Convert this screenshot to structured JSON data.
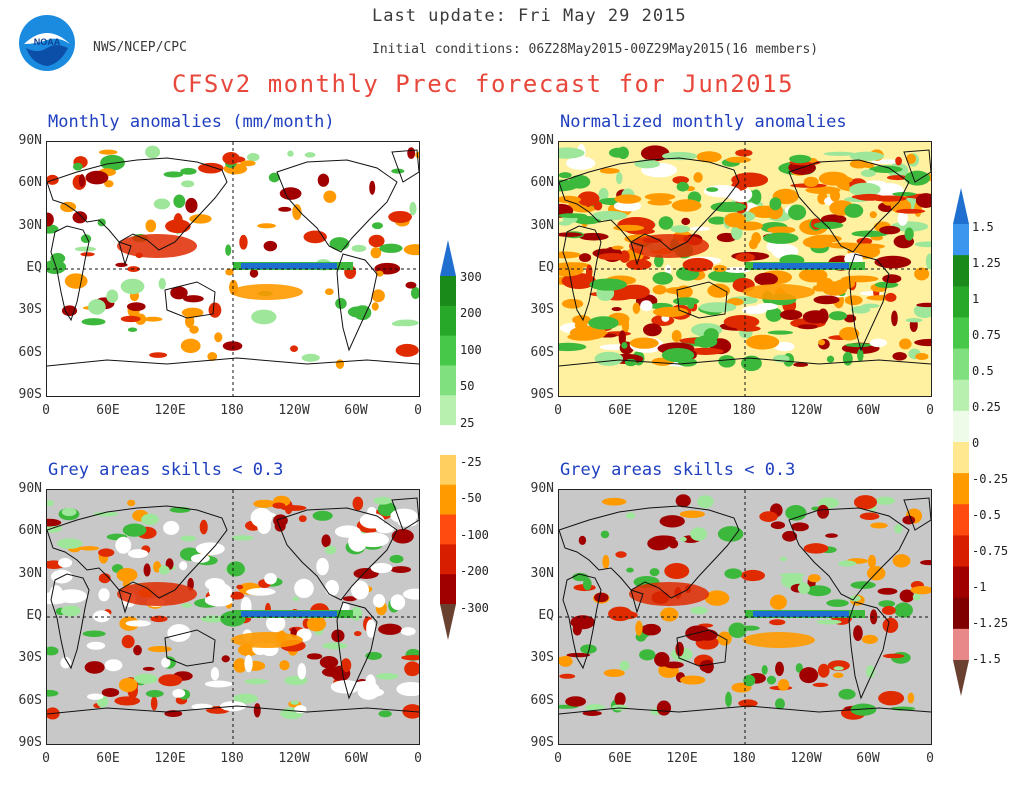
{
  "header": {
    "last_update": "Last update: Fri May 29 2015",
    "agency": "NWS/NCEP/CPC",
    "initial_conditions": "Initial conditions: 06Z28May2015-00Z29May2015(16 members)",
    "main_title": "CFSv2 monthly Prec forecast for Jun2015",
    "logo_text": "NOAA"
  },
  "panels": [
    {
      "id": "anomalies",
      "title": "Monthly anomalies (mm/month)"
    },
    {
      "id": "normalized",
      "title": "Normalized monthly anomalies"
    },
    {
      "id": "skill-anomalies",
      "title": "Grey areas skills < 0.3"
    },
    {
      "id": "skill-normalized",
      "title": "Grey areas skills < 0.3"
    }
  ],
  "axes": {
    "lat_labels": [
      "90N",
      "60N",
      "30N",
      "EQ",
      "30S",
      "60S",
      "90S"
    ],
    "lon_labels": [
      "0",
      "60E",
      "120E",
      "180",
      "120W",
      "60W",
      "0"
    ]
  },
  "colorbar_mm": {
    "labels": [
      "300",
      "200",
      "100",
      "50",
      "25",
      "-25",
      "-50",
      "-100",
      "-200",
      "-300"
    ],
    "colors": [
      "#1e6fd0",
      "#1a8a1a",
      "#28a828",
      "#48c848",
      "#80e080",
      "#b8f0b0",
      "#ffffff",
      "#ffd060",
      "#ff9a00",
      "#ff4a10",
      "#d81e00",
      "#a00000",
      "#6a4030"
    ]
  },
  "colorbar_norm": {
    "labels": [
      "1.5",
      "1.25",
      "1",
      "0.75",
      "0.5",
      "0.25",
      "0",
      "-0.25",
      "-0.5",
      "-0.75",
      "-1",
      "-1.25",
      "-1.5"
    ],
    "colors": [
      "#1e6fd0",
      "#3c96ee",
      "#1a8a1a",
      "#28a828",
      "#48c848",
      "#80e080",
      "#b8f0b0",
      "#eefbe8",
      "#ffe890",
      "#ff9a00",
      "#ff4a10",
      "#d81e00",
      "#a00000",
      "#800000",
      "#e88888",
      "#6a4030"
    ]
  },
  "map_colors": {
    "grey": "#c8c8c8",
    "ocean_normal": "#fff1a0",
    "green": "#3cb83c",
    "light_green": "#9ee69a",
    "blue": "#1e6fd0",
    "orange": "#ff9a00",
    "red": "#e02a00",
    "dark_red": "#a00000"
  }
}
